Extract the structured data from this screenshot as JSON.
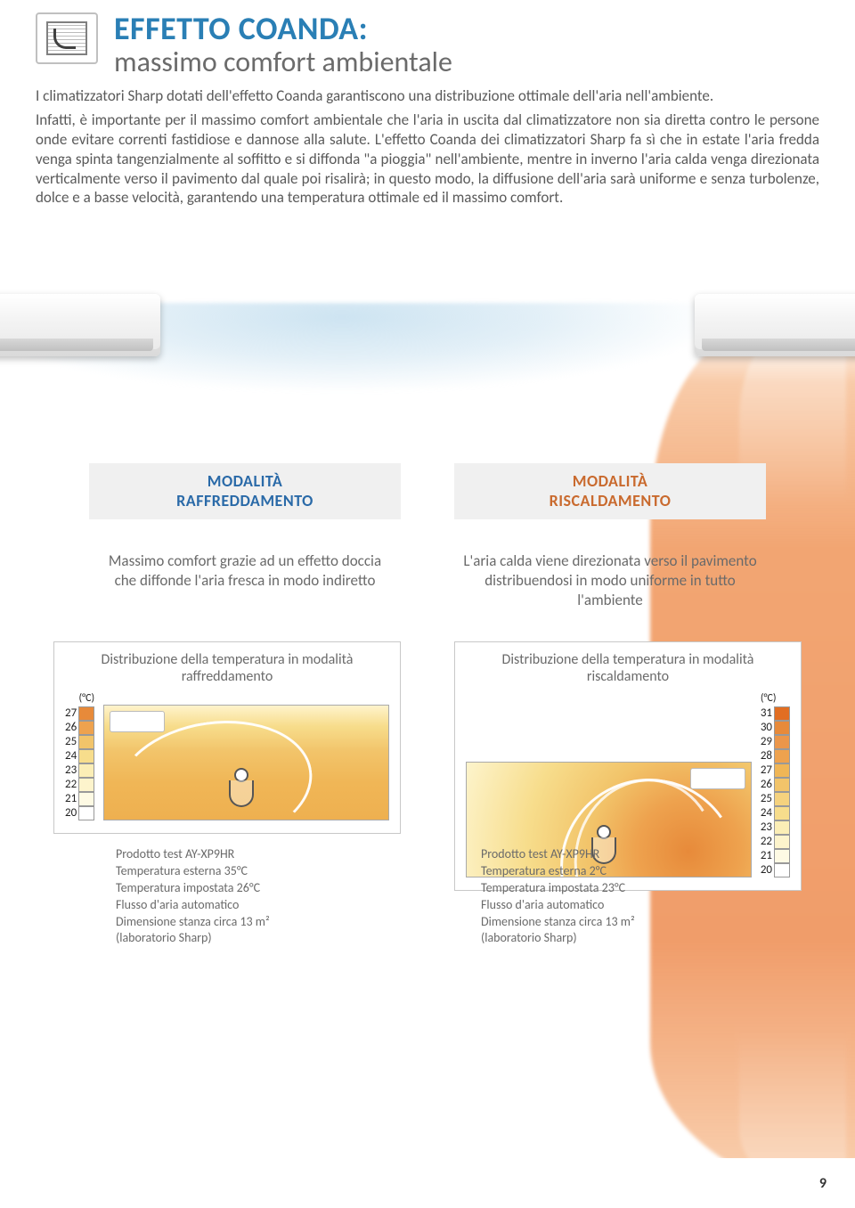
{
  "header": {
    "title_main": "EFFETTO COANDA:",
    "title_main_color": "#2a7fb5",
    "title_sub": "massimo comfort ambientale",
    "intro": "I climatizzatori Sharp dotati dell'effetto Coanda garantiscono una distribuzione ottimale dell'aria nell'ambiente.",
    "body": "Infatti, è importante per il massimo comfort ambientale che l'aria in uscita dal climatizzatore non sia diretta contro le persone onde evitare correnti fastidiose e dannose alla salute. L'effetto Coanda dei climatizzatori Sharp fa sì che in estate l'aria fredda venga spinta tangenzialmente al soffitto e si diffonda \"a pioggia\" nell'ambiente, mentre in inverno l'aria calda venga direzionata verticalmente verso il pavimento dal quale poi risalirà; in questo modo, la diffusione dell'aria sarà uniforme e senza turbolenze, dolce e a basse velocità, garantendo una temperatura ottimale ed il massimo comfort."
  },
  "modes": {
    "cool": {
      "label_line1": "MODALITÀ",
      "label_line2": "RAFFREDDAMENTO",
      "label_color": "#2a6aa8",
      "desc": "Massimo comfort grazie ad un effetto doccia che diffonde l'aria fresca in modo indiretto",
      "dist_title": "Distribuzione della temperatura in modalità raffreddamento",
      "scale_unit": "(°C)",
      "scale": [
        {
          "v": "27",
          "c": "#e78a3a"
        },
        {
          "v": "26",
          "c": "#eea24e"
        },
        {
          "v": "25",
          "c": "#f2c46a"
        },
        {
          "v": "24",
          "c": "#f7dd8c"
        },
        {
          "v": "23",
          "c": "#fbeeb6"
        },
        {
          "v": "22",
          "c": "#fdf4cc"
        },
        {
          "v": "21",
          "c": "#fefae4"
        },
        {
          "v": "20",
          "c": "#ffffff"
        }
      ],
      "test": [
        "Prodotto test AY-XP9HR",
        "Temperatura esterna 35°C",
        "Temperatura impostata 26°C",
        "Flusso d'aria automatico",
        "Dimensione stanza circa 13 m²",
        "(laboratorio Sharp)"
      ]
    },
    "warm": {
      "label_line1": "MODALITÀ",
      "label_line2": "RISCALDAMENTO",
      "label_color": "#c96a2e",
      "desc": "L'aria calda viene direzionata verso il pavimento distribuendosi in modo uniforme in tutto l'ambiente",
      "dist_title": "Distribuzione della temperatura in modalità riscaldamento",
      "scale_unit": "(°C)",
      "scale": [
        {
          "v": "31",
          "c": "#e26e22"
        },
        {
          "v": "30",
          "c": "#e78a3a"
        },
        {
          "v": "29",
          "c": "#eb964a"
        },
        {
          "v": "28",
          "c": "#eea24e"
        },
        {
          "v": "27",
          "c": "#f0b656"
        },
        {
          "v": "26",
          "c": "#f2c46a"
        },
        {
          "v": "25",
          "c": "#f5d27e"
        },
        {
          "v": "24",
          "c": "#f7dd8c"
        },
        {
          "v": "23",
          "c": "#fbeeb6"
        },
        {
          "v": "22",
          "c": "#fdf4cc"
        },
        {
          "v": "21",
          "c": "#fefae4"
        },
        {
          "v": "20",
          "c": "#ffffff"
        }
      ],
      "test": [
        "Prodotto test AY-XP9HR",
        "Temperatura esterna 2°C",
        "Temperatura impostata 23°C",
        "Flusso d'aria automatico",
        "Dimensione stanza circa 13 m²",
        "(laboratorio Sharp)"
      ]
    }
  },
  "page_number": "9"
}
